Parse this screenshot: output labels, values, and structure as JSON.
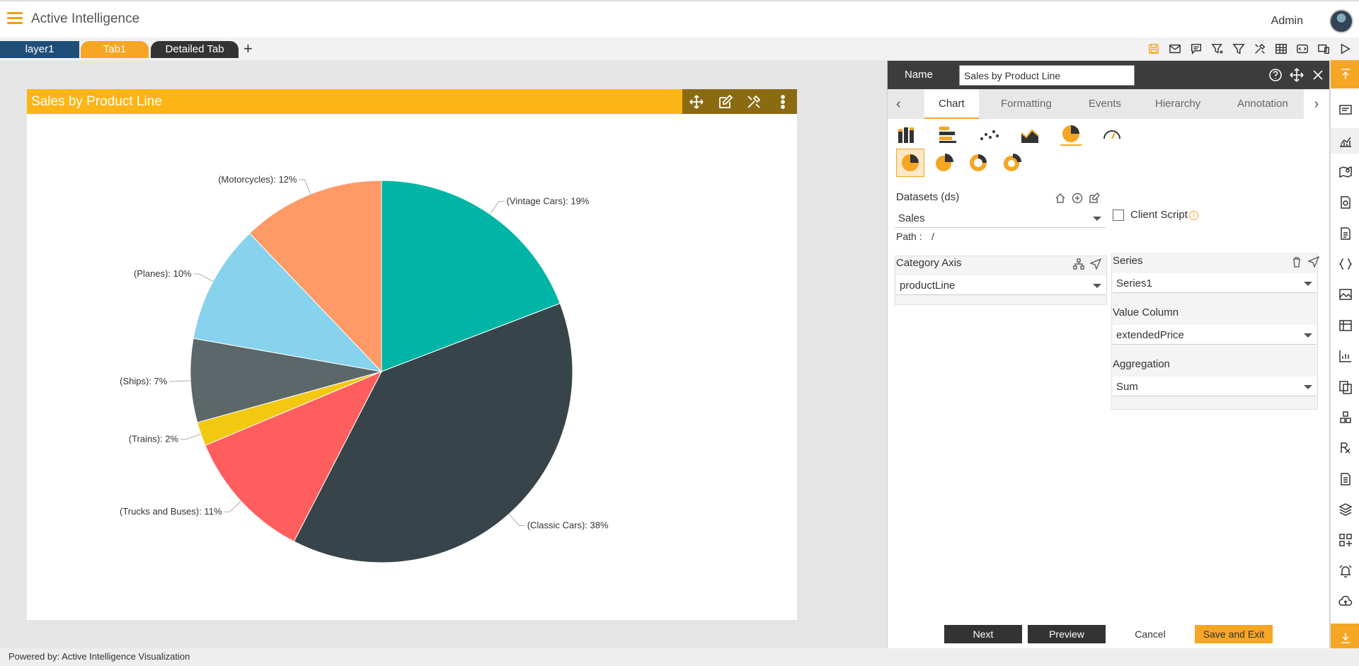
{
  "app": {
    "title": "Active Intelligence",
    "user": "Admin"
  },
  "tabs": [
    "layer1",
    "Tab1",
    "Detailed Tab"
  ],
  "tab_add": "+",
  "chart_panel": {
    "title": "Sales by Product Line"
  },
  "chart_data": {
    "type": "pie",
    "title": "Sales by Product Line",
    "slices": [
      {
        "label": "(Vintage Cars): 19%",
        "category": "Vintage Cars",
        "value": 19,
        "color": "#00b5a5"
      },
      {
        "label": "(Classic Cars): 38%",
        "category": "Classic Cars",
        "value": 38,
        "color": "#37444a"
      },
      {
        "label": "(Trucks and Buses): 11%",
        "category": "Trucks and Buses",
        "value": 11,
        "color": "#ff5e5e"
      },
      {
        "label": "(Trains): 2%",
        "category": "Trains",
        "value": 2,
        "color": "#f2c811"
      },
      {
        "label": "(Ships): 7%",
        "category": "Ships",
        "value": 7,
        "color": "#5b6768"
      },
      {
        "label": "(Planes): 10%",
        "category": "Planes",
        "value": 10,
        "color": "#87d2ec"
      },
      {
        "label": "(Motorcycles): 12%",
        "category": "Motorcycles",
        "value": 12,
        "color": "#ff9966"
      }
    ]
  },
  "settings": {
    "name_label": "Name",
    "name_value": "Sales by Product Line",
    "subtabs": [
      "Chart",
      "Formatting",
      "Events",
      "Hierarchy",
      "Annotation"
    ],
    "datasets_label": "Datasets (ds)",
    "dataset_value": "Sales",
    "client_script_label": "Client Script",
    "path_label": "Path :",
    "path_value": "/",
    "category_axis_label": "Category Axis",
    "category_axis_value": "productLine",
    "series_label": "Series",
    "series_value": "Series1",
    "value_column_label": "Value Column",
    "value_column_value": "extendedPrice",
    "aggregation_label": "Aggregation",
    "aggregation_value": "Sum",
    "buttons": {
      "next": "Next",
      "preview": "Preview",
      "cancel": "Cancel",
      "save_exit": "Save and Exit"
    }
  },
  "footer": "Powered by: Active Intelligence Visualization",
  "colors": {
    "accent": "#f5a623",
    "header_dark": "#3c3c3c",
    "tab_blue": "#1f4e79"
  }
}
